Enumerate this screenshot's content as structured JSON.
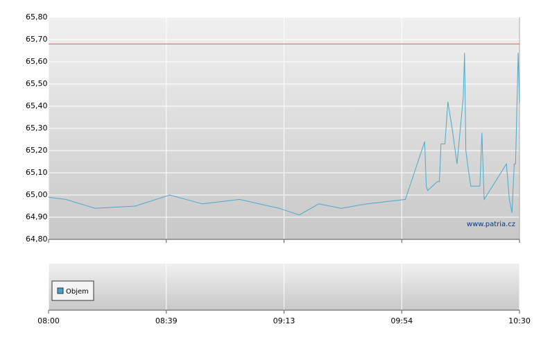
{
  "chart_data": {
    "type": "line",
    "watermark": "www.patria.cz",
    "x": [
      0,
      5.7,
      15.4,
      28.7,
      40,
      49.4,
      60.2,
      71.6,
      78.3,
      85.1,
      92.8,
      102,
      115.1,
      121,
      121.5,
      121.9,
      124.9,
      125.5,
      126,
      127.2,
      128.1,
      129.4,
      130.9,
      132.8,
      133.2,
      133.6,
      134.3,
      135.1,
      137.9,
      138.5,
      139.2,
      146,
      146.9,
      147.7,
      148.4,
      148.8,
      149.6,
      150
    ],
    "series": [
      {
        "color": "#4aa8cc",
        "values": [
          64.99,
          64.98,
          64.94,
          64.95,
          65.0,
          64.96,
          64.98,
          64.94,
          64.91,
          64.96,
          64.94,
          64.96,
          64.98,
          65.24,
          65.04,
          65.02,
          65.06,
          65.06,
          65.23,
          65.23,
          65.42,
          65.3,
          65.14,
          65.44,
          65.64,
          65.2,
          65.12,
          65.04,
          65.04,
          65.28,
          64.98,
          65.14,
          64.98,
          64.92,
          65.14,
          65.14,
          65.64,
          65.41
        ]
      }
    ],
    "reference_line": {
      "value": 65.68,
      "color": "#e06060"
    },
    "xlim": [
      0,
      150
    ],
    "xticks": [
      {
        "value": 0,
        "label": "08:00"
      },
      {
        "value": 39,
        "label": "08:39"
      },
      {
        "value": 73,
        "label": "09:13"
      },
      {
        "value": 114,
        "label": "09:54"
      },
      {
        "value": 150,
        "label": "10:30"
      }
    ],
    "ylim": [
      64.8,
      65.8
    ],
    "yticks": [
      {
        "value": 64.8,
        "label": "64,80"
      },
      {
        "value": 64.9,
        "label": "64,90"
      },
      {
        "value": 65.0,
        "label": "65,00"
      },
      {
        "value": 65.1,
        "label": "65,10"
      },
      {
        "value": 65.2,
        "label": "65,20"
      },
      {
        "value": 65.3,
        "label": "65,30"
      },
      {
        "value": 65.4,
        "label": "65,40"
      },
      {
        "value": 65.5,
        "label": "65,50"
      },
      {
        "value": 65.6,
        "label": "65,60"
      },
      {
        "value": 65.7,
        "label": "65,70"
      },
      {
        "value": 65.8,
        "label": "65,80"
      }
    ],
    "grid": true,
    "volume_legend": {
      "name": "Objem",
      "color": "#4a9fcf"
    }
  }
}
